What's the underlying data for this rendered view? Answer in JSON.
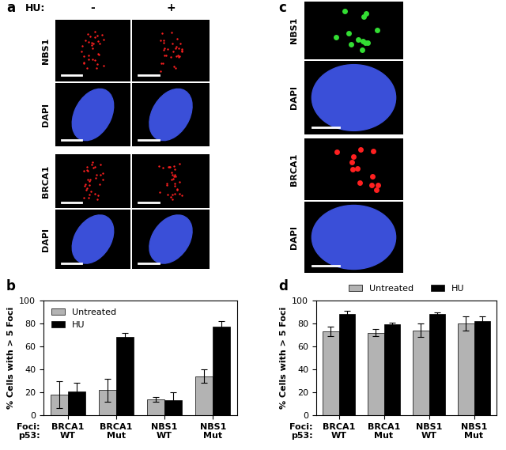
{
  "panel_labels": [
    "a",
    "b",
    "c",
    "d"
  ],
  "panel_a": {
    "treatment_label": "HU:",
    "columns": [
      "-",
      "+"
    ],
    "rows": [
      "NBS1",
      "DAPI",
      "BRCA1",
      "DAPI"
    ]
  },
  "panel_c": {
    "rows": [
      "NBS1",
      "DAPI",
      "BRCA1",
      "DAPI"
    ]
  },
  "chart_data": [
    {
      "type": "bar",
      "y_label": "% Cells with > 5 Foci",
      "categories": [
        "BRCA1\nWT",
        "BRCA1\nMut",
        "NBS1\nWT",
        "NBS1\nMut"
      ],
      "x_row_labels": [
        "Foci:",
        "p53:"
      ],
      "series": [
        {
          "name": "Untreated",
          "color": "#b3b3b3",
          "values": [
            18,
            22,
            14,
            34
          ],
          "errors": [
            12,
            10,
            2,
            6
          ]
        },
        {
          "name": "HU",
          "color": "#000000",
          "values": [
            21,
            68,
            13,
            77
          ],
          "errors": [
            7,
            4,
            7,
            5
          ]
        }
      ],
      "ylim": [
        0,
        100
      ],
      "yticks": [
        0,
        20,
        40,
        60,
        80,
        100
      ],
      "legend": "upper left"
    },
    {
      "type": "bar",
      "y_label": "% Cells with > 5 Foci",
      "categories": [
        "BRCA1\nWT",
        "BRCA1\nMut",
        "NBS1\nWT",
        "NBS1\nMut"
      ],
      "x_row_labels": [
        "Foci:",
        "p53:"
      ],
      "series": [
        {
          "name": "Untreated",
          "color": "#b3b3b3",
          "values": [
            73,
            72,
            74,
            80
          ],
          "errors": [
            4,
            3,
            6,
            6
          ]
        },
        {
          "name": "HU",
          "color": "#000000",
          "values": [
            88,
            79,
            88,
            82
          ],
          "errors": [
            3,
            2,
            2,
            4
          ]
        }
      ],
      "ylim": [
        0,
        100
      ],
      "yticks": [
        0,
        20,
        40,
        60,
        80,
        100
      ],
      "legend": "lower center"
    }
  ]
}
